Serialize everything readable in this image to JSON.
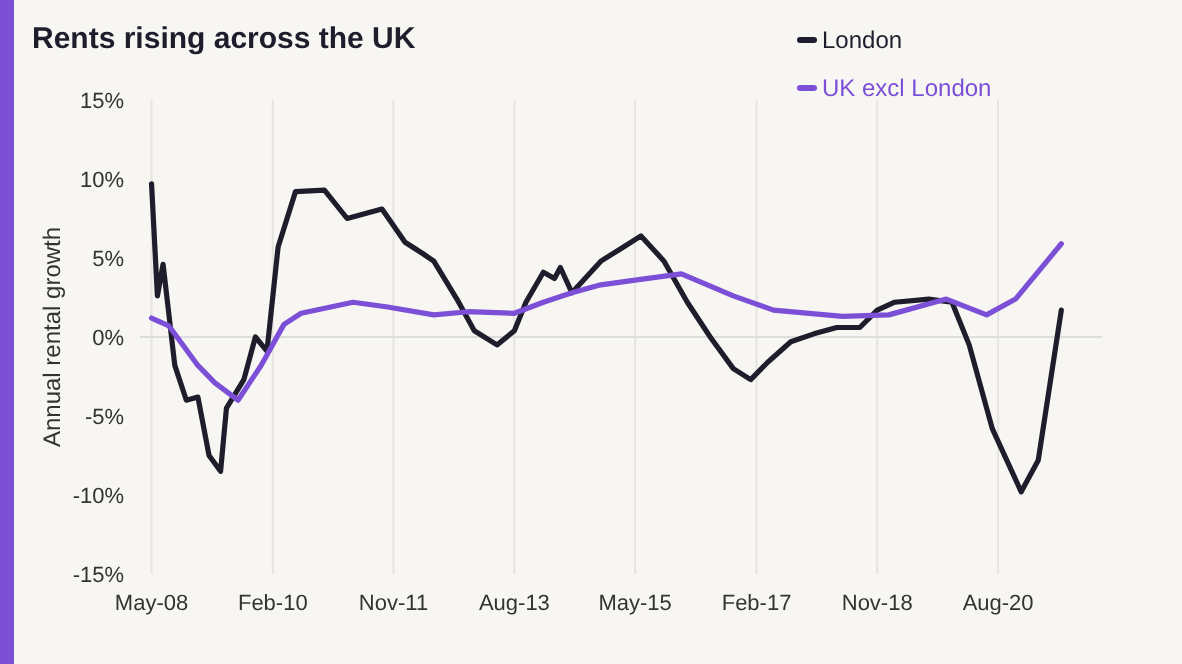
{
  "chart_data": {
    "type": "line",
    "title": "Rents rising across the UK",
    "ylabel": "Annual rental growth",
    "xlim": [
      "2008-03",
      "2022-02"
    ],
    "xticks": [
      {
        "value": "2008-05",
        "label": "May-08"
      },
      {
        "value": "2010-02",
        "label": "Feb-10"
      },
      {
        "value": "2011-11",
        "label": "Nov-11"
      },
      {
        "value": "2013-08",
        "label": "Aug-13"
      },
      {
        "value": "2015-05",
        "label": "May-15"
      },
      {
        "value": "2017-02",
        "label": "Feb-17"
      },
      {
        "value": "2018-11",
        "label": "Nov-18"
      },
      {
        "value": "2020-08",
        "label": "Aug-20"
      }
    ],
    "ylim": [
      -15,
      15
    ],
    "yticks": [
      {
        "value": -15,
        "label": "-15%"
      },
      {
        "value": -10,
        "label": "-10%"
      },
      {
        "value": -5,
        "label": "-5%"
      },
      {
        "value": 0,
        "label": "0%"
      },
      {
        "value": 5,
        "label": "5%"
      },
      {
        "value": 10,
        "label": "10%"
      },
      {
        "value": 15,
        "label": "15%"
      }
    ],
    "grid": "x",
    "legend": "top right",
    "marker": "none",
    "line_style": "solid",
    "ref_lines": [
      {
        "axis": "y",
        "value": 0,
        "color": "#dddddd"
      }
    ],
    "series": [
      {
        "name": "London",
        "color": "#1f1d2b",
        "x": [
          "2008-05",
          "2008-06",
          "2008-07",
          "2008-09",
          "2008-11",
          "2009-01",
          "2009-03",
          "2009-05",
          "2009-06",
          "2009-09",
          "2009-11",
          "2010-01",
          "2010-03",
          "2010-06",
          "2010-11",
          "2011-03",
          "2011-09",
          "2012-01",
          "2012-04",
          "2012-06",
          "2012-10",
          "2013-01",
          "2013-05",
          "2013-08",
          "2013-10",
          "2014-01",
          "2014-03",
          "2014-04",
          "2014-06",
          "2014-11",
          "2015-03",
          "2015-06",
          "2015-10",
          "2016-02",
          "2016-06",
          "2016-10",
          "2017-01",
          "2017-04",
          "2017-08",
          "2017-12",
          "2018-04",
          "2018-08",
          "2018-11",
          "2019-02",
          "2019-08",
          "2019-12",
          "2020-03",
          "2020-07",
          "2020-12",
          "2021-03",
          "2021-07"
        ],
        "values": [
          9.7,
          2.6,
          4.6,
          -1.8,
          -4.0,
          -3.8,
          -7.5,
          -8.5,
          -4.5,
          -2.7,
          0,
          -0.9,
          5.7,
          9.2,
          9.3,
          7.5,
          8.1,
          6.0,
          5.3,
          4.8,
          2.4,
          0.4,
          -0.5,
          0.4,
          2.2,
          4.1,
          3.7,
          4.4,
          2.8,
          4.8,
          5.7,
          6.4,
          4.8,
          2.2,
          0,
          -2.0,
          -2.7,
          -1.6,
          -0.3,
          0.2,
          0.6,
          0.6,
          1.7,
          2.2,
          2.4,
          2.2,
          -0.5,
          -5.8,
          -9.8,
          -7.8,
          1.7
        ]
      },
      {
        "name": "UK excl London",
        "color": "#7b4fd6",
        "x": [
          "2008-05",
          "2008-08",
          "2009-01",
          "2009-04",
          "2009-08",
          "2009-12",
          "2010-04",
          "2010-07",
          "2011-04",
          "2011-10",
          "2012-06",
          "2012-12",
          "2013-08",
          "2014-01",
          "2014-06",
          "2014-11",
          "2015-05",
          "2016-01",
          "2016-10",
          "2017-05",
          "2018-05",
          "2019-01",
          "2019-11",
          "2020-06",
          "2020-11",
          "2021-07"
        ],
        "values": [
          1.2,
          0.7,
          -1.8,
          -2.9,
          -4.0,
          -1.8,
          0.8,
          1.5,
          2.2,
          1.9,
          1.4,
          1.6,
          1.5,
          2.2,
          2.8,
          3.3,
          3.6,
          4.0,
          2.6,
          1.7,
          1.3,
          1.4,
          2.4,
          1.4,
          2.4,
          5.9
        ]
      }
    ]
  }
}
